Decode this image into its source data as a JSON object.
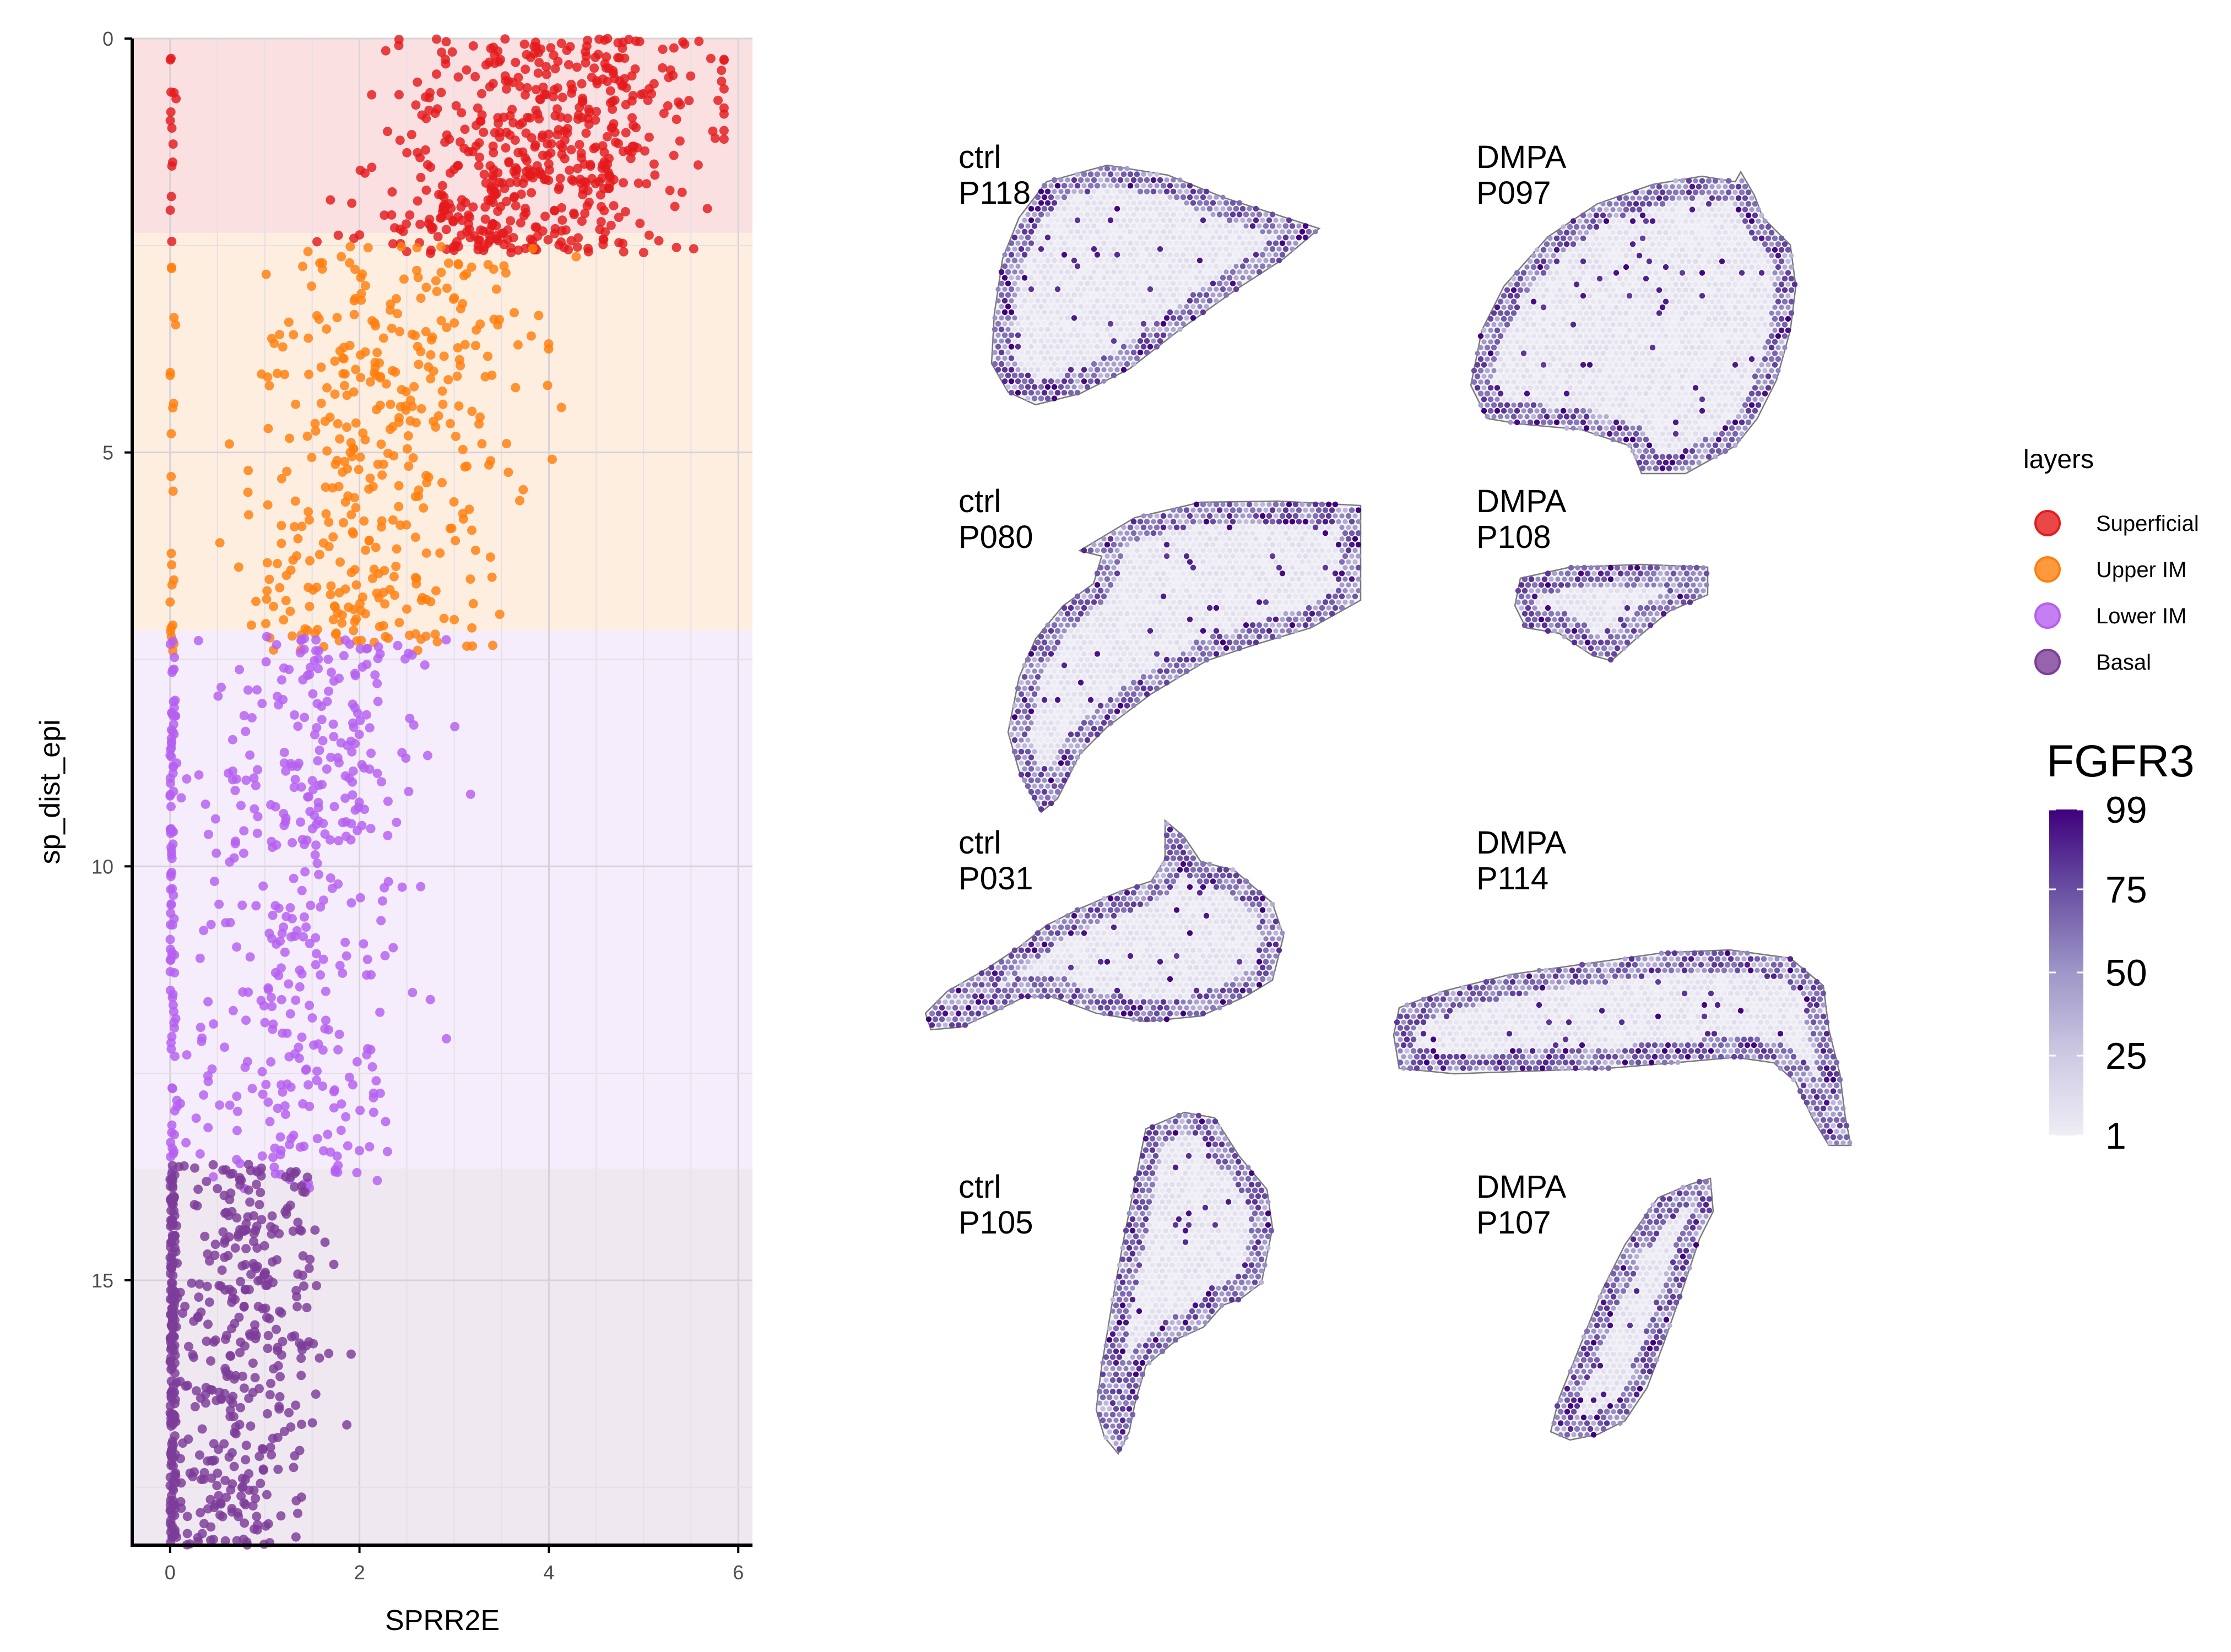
{
  "chart_data": [
    {
      "type": "scatter",
      "xlabel": "SPRR2E",
      "ylabel": "sp_dist_epi",
      "xlim": [
        -0.4,
        6.15
      ],
      "ylim": [
        18.2,
        0
      ],
      "y_reversed": true,
      "grid": true,
      "x_ticks": [
        0,
        2,
        4,
        6
      ],
      "y_ticks": [
        0,
        5,
        10,
        15
      ],
      "x_tick_labels": [
        "0",
        "2",
        "4",
        "6"
      ],
      "y_tick_labels": [
        "0",
        "5",
        "10",
        "15"
      ],
      "bands": [
        {
          "layer": "Superficial",
          "y": [
            0,
            2.35
          ],
          "color": "#fbe0e2"
        },
        {
          "layer": "Upper IM",
          "y": [
            2.35,
            7.15
          ],
          "color": "#fdeee0"
        },
        {
          "layer": "Lower IM",
          "y": [
            7.15,
            13.65
          ],
          "color": "#f5edfb"
        },
        {
          "layer": "Basal",
          "y": [
            13.65,
            18.2
          ],
          "color": "#f0e8f1"
        }
      ],
      "series": [
        {
          "name": "Superficial",
          "color": "#e41a1c",
          "n": 560,
          "x_center": 3.9,
          "x_spread": 1.1,
          "y_range": [
            0,
            2.6
          ],
          "zero_x_points": 14
        },
        {
          "name": "Upper IM",
          "color": "#ff7f0e",
          "n": 400,
          "x_center": 2.3,
          "x_spread": 0.95,
          "y_range": [
            2.5,
            7.4
          ],
          "zero_x_points": 22
        },
        {
          "name": "Lower IM",
          "color": "#b55ff0",
          "n": 420,
          "x_center": 1.45,
          "x_spread": 0.75,
          "y_range": [
            7.2,
            13.9
          ],
          "zero_x_points": 90
        },
        {
          "name": "Basal",
          "color": "#7d3c98",
          "n": 380,
          "x_center": 0.75,
          "x_spread": 0.55,
          "y_range": [
            13.6,
            18.2
          ],
          "zero_x_points": 160
        }
      ]
    },
    {
      "type": "heatmap",
      "colorbar_title": "FGFR3",
      "color_range": [
        1,
        99
      ],
      "colorbar_ticks": [
        1,
        25,
        50,
        75,
        99
      ],
      "colorbar_tick_labels": [
        "1",
        "25",
        "50",
        "75",
        "99"
      ],
      "colors": {
        "low": "#efedf5",
        "high": "#3f007d"
      },
      "panels": [
        {
          "group": "ctrl",
          "sample": "P118"
        },
        {
          "group": "DMPA",
          "sample": "P097"
        },
        {
          "group": "ctrl",
          "sample": "P080"
        },
        {
          "group": "DMPA",
          "sample": "P108"
        },
        {
          "group": "ctrl",
          "sample": "P031"
        },
        {
          "group": "DMPA",
          "sample": "P114"
        },
        {
          "group": "ctrl",
          "sample": "P105"
        },
        {
          "group": "DMPA",
          "sample": "P107"
        }
      ]
    }
  ],
  "legend": {
    "title": "layers",
    "items": [
      {
        "label": "Superficial",
        "color": "#e41a1c"
      },
      {
        "label": "Upper IM",
        "color": "#ff7f0e"
      },
      {
        "label": "Lower IM",
        "color": "#b55ff0"
      },
      {
        "label": "Basal",
        "color": "#7d3c98"
      }
    ]
  }
}
